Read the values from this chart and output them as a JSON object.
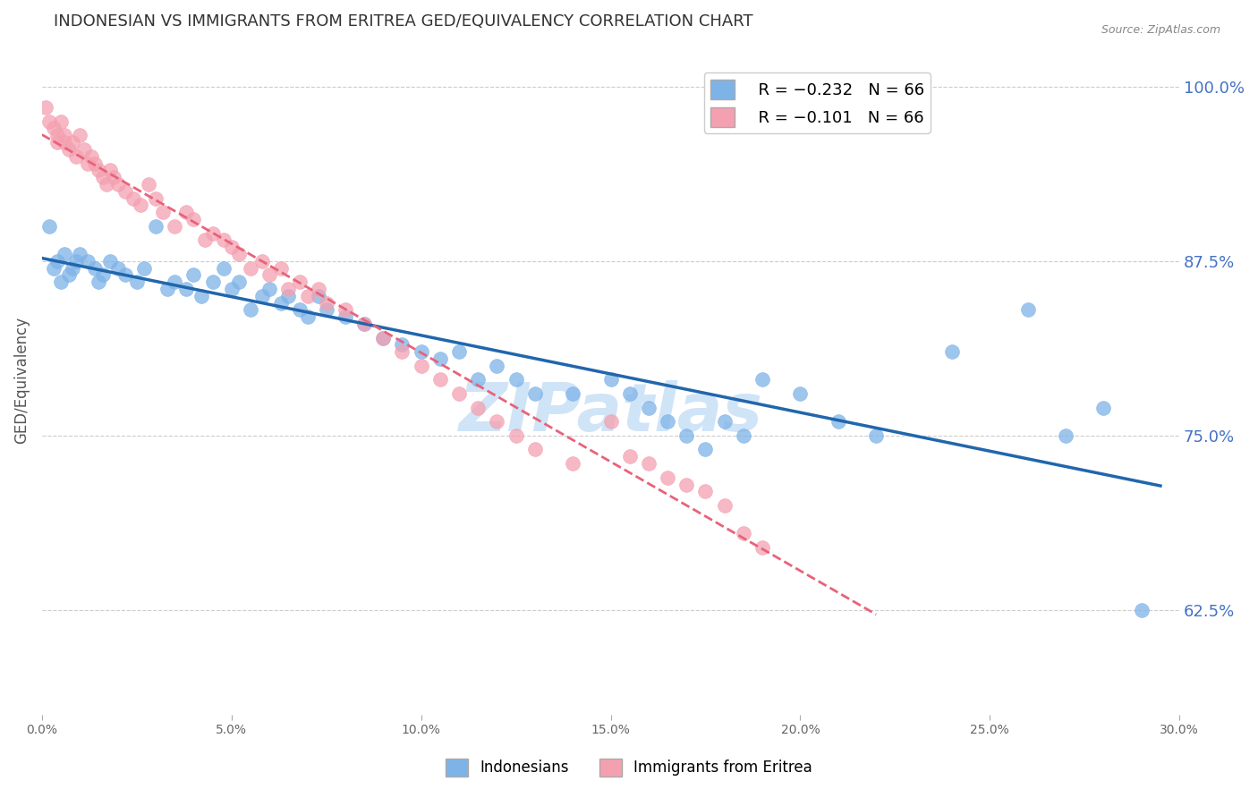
{
  "title": "INDONESIAN VS IMMIGRANTS FROM ERITREA GED/EQUIVALENCY CORRELATION CHART",
  "source": "Source: ZipAtlas.com",
  "ylabel": "GED/Equivalency",
  "ytick_labels": [
    "100.0%",
    "87.5%",
    "75.0%",
    "62.5%"
  ],
  "ytick_values": [
    1.0,
    0.875,
    0.75,
    0.625
  ],
  "xlim": [
    0.0,
    0.3
  ],
  "ylim": [
    0.55,
    1.03
  ],
  "legend_blue_r": "R = −0.232",
  "legend_blue_n": "N = 66",
  "legend_pink_r": "R = −0.101",
  "legend_pink_n": "N = 66",
  "blue_color": "#7EB3E8",
  "pink_color": "#F4A0B0",
  "trend_blue_color": "#2166AC",
  "trend_pink_color": "#E8637A",
  "background_color": "#FFFFFF",
  "grid_color": "#CCCCCC",
  "title_color": "#333333",
  "axis_label_color": "#555555",
  "right_tick_color": "#4472C4",
  "watermark_color": "#D0E4F7",
  "indonesian_x": [
    0.002,
    0.003,
    0.004,
    0.005,
    0.006,
    0.007,
    0.008,
    0.009,
    0.01,
    0.012,
    0.014,
    0.015,
    0.016,
    0.018,
    0.02,
    0.022,
    0.025,
    0.027,
    0.03,
    0.033,
    0.035,
    0.038,
    0.04,
    0.042,
    0.045,
    0.048,
    0.05,
    0.052,
    0.055,
    0.058,
    0.06,
    0.063,
    0.065,
    0.068,
    0.07,
    0.073,
    0.075,
    0.08,
    0.085,
    0.09,
    0.095,
    0.1,
    0.105,
    0.11,
    0.115,
    0.12,
    0.125,
    0.13,
    0.14,
    0.15,
    0.155,
    0.16,
    0.165,
    0.17,
    0.175,
    0.18,
    0.185,
    0.19,
    0.2,
    0.21,
    0.22,
    0.24,
    0.26,
    0.27,
    0.28,
    0.29
  ],
  "indonesian_y": [
    0.9,
    0.87,
    0.875,
    0.86,
    0.88,
    0.865,
    0.87,
    0.875,
    0.88,
    0.875,
    0.87,
    0.86,
    0.865,
    0.875,
    0.87,
    0.865,
    0.86,
    0.87,
    0.9,
    0.855,
    0.86,
    0.855,
    0.865,
    0.85,
    0.86,
    0.87,
    0.855,
    0.86,
    0.84,
    0.85,
    0.855,
    0.845,
    0.85,
    0.84,
    0.835,
    0.85,
    0.84,
    0.835,
    0.83,
    0.82,
    0.815,
    0.81,
    0.805,
    0.81,
    0.79,
    0.8,
    0.79,
    0.78,
    0.78,
    0.79,
    0.78,
    0.77,
    0.76,
    0.75,
    0.74,
    0.76,
    0.75,
    0.79,
    0.78,
    0.76,
    0.75,
    0.81,
    0.84,
    0.75,
    0.77,
    0.625
  ],
  "eritrea_x": [
    0.001,
    0.002,
    0.003,
    0.004,
    0.004,
    0.005,
    0.006,
    0.006,
    0.007,
    0.008,
    0.009,
    0.01,
    0.011,
    0.012,
    0.013,
    0.014,
    0.015,
    0.016,
    0.017,
    0.018,
    0.019,
    0.02,
    0.022,
    0.024,
    0.026,
    0.028,
    0.03,
    0.032,
    0.035,
    0.038,
    0.04,
    0.043,
    0.045,
    0.048,
    0.05,
    0.052,
    0.055,
    0.058,
    0.06,
    0.063,
    0.065,
    0.068,
    0.07,
    0.073,
    0.075,
    0.08,
    0.085,
    0.09,
    0.095,
    0.1,
    0.105,
    0.11,
    0.115,
    0.12,
    0.125,
    0.13,
    0.14,
    0.15,
    0.155,
    0.16,
    0.165,
    0.17,
    0.175,
    0.18,
    0.185,
    0.19
  ],
  "eritrea_y": [
    0.985,
    0.975,
    0.97,
    0.965,
    0.96,
    0.975,
    0.965,
    0.96,
    0.955,
    0.96,
    0.95,
    0.965,
    0.955,
    0.945,
    0.95,
    0.945,
    0.94,
    0.935,
    0.93,
    0.94,
    0.935,
    0.93,
    0.925,
    0.92,
    0.915,
    0.93,
    0.92,
    0.91,
    0.9,
    0.91,
    0.905,
    0.89,
    0.895,
    0.89,
    0.885,
    0.88,
    0.87,
    0.875,
    0.865,
    0.87,
    0.855,
    0.86,
    0.85,
    0.855,
    0.845,
    0.84,
    0.83,
    0.82,
    0.81,
    0.8,
    0.79,
    0.78,
    0.77,
    0.76,
    0.75,
    0.74,
    0.73,
    0.76,
    0.735,
    0.73,
    0.72,
    0.715,
    0.71,
    0.7,
    0.68,
    0.67
  ]
}
